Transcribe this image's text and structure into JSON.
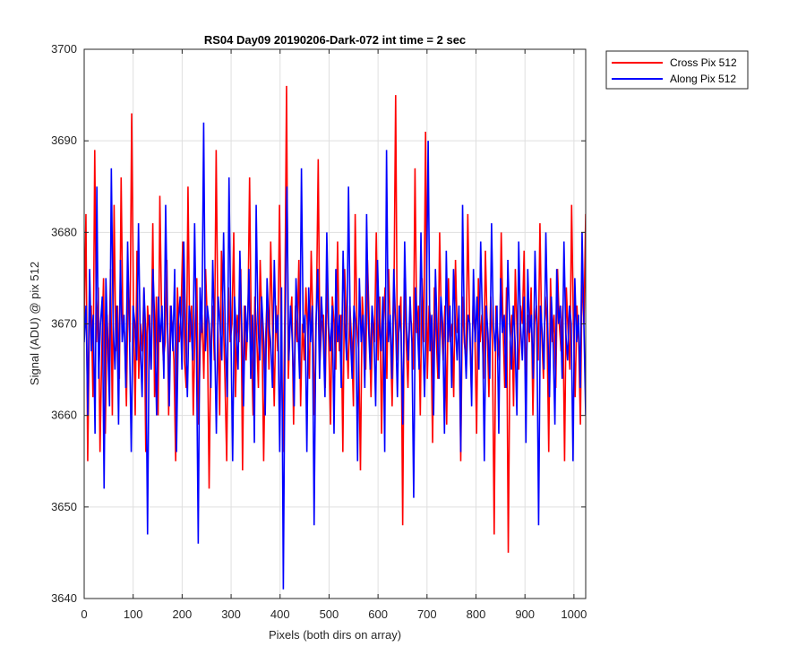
{
  "chart_data": {
    "type": "line",
    "title": "RS04 Day09 20190206-Dark-072 int time = 2 sec",
    "xlabel": "Pixels (both dirs on array)",
    "ylabel": "Signal (ADU) @ pix 512",
    "xlim": [
      0,
      1024
    ],
    "ylim": [
      3640,
      3700
    ],
    "xticks": [
      0,
      100,
      200,
      300,
      400,
      500,
      600,
      700,
      800,
      900,
      1000
    ],
    "yticks": [
      3640,
      3650,
      3660,
      3670,
      3680,
      3690,
      3700
    ],
    "grid": true,
    "legend_position": "outside-top-right",
    "series": [
      {
        "name": "Cross Pix 512",
        "color": "#ff0000",
        "x_step": 1,
        "values": [
          3670,
          3682,
          3655,
          3670,
          3672,
          3662,
          3689,
          3668,
          3674,
          3656,
          3667,
          3675,
          3658,
          3671,
          3665,
          3676,
          3660,
          3683,
          3667,
          3672,
          3664,
          3686,
          3670,
          3669,
          3661,
          3675,
          3668,
          3693,
          3672,
          3660,
          3678,
          3664,
          3670,
          3667,
          3674,
          3656,
          3672,
          3669,
          3665,
          3681,
          3662,
          3673,
          3660,
          3684,
          3671,
          3666,
          3668,
          3677,
          3660,
          3672,
          3670,
          3666,
          3655,
          3674,
          3668,
          3671,
          3679,
          3666,
          3663,
          3685,
          3668,
          3672,
          3660,
          3670,
          3675,
          3659,
          3668,
          3671,
          3664,
          3676,
          3670,
          3652,
          3668,
          3672,
          3666,
          3689,
          3670,
          3660,
          3678,
          3671,
          3664,
          3655,
          3674,
          3668,
          3670,
          3680,
          3662,
          3671,
          3668,
          3676,
          3654,
          3672,
          3666,
          3670,
          3686,
          3668,
          3660,
          3673,
          3669,
          3663,
          3677,
          3670,
          3655,
          3668,
          3673,
          3665,
          3679,
          3670,
          3661,
          3672,
          3667,
          3683,
          3668,
          3656,
          3671,
          3696,
          3664,
          3670,
          3673,
          3659,
          3672,
          3668,
          3677,
          3661,
          3670,
          3666,
          3674,
          3669,
          3664,
          3678,
          3670,
          3660,
          3672,
          3688,
          3666,
          3670,
          3671,
          3663,
          3675,
          3668,
          3659,
          3673,
          3670,
          3665,
          3679,
          3667,
          3671,
          3656,
          3676,
          3670,
          3664,
          3672,
          3668,
          3661,
          3682,
          3670,
          3667,
          3654,
          3673,
          3669,
          3665,
          3677,
          3670,
          3662,
          3671,
          3668,
          3680,
          3666,
          3673,
          3658,
          3670,
          3674,
          3664,
          3676,
          3669,
          3661,
          3672,
          3695,
          3666,
          3670,
          3673,
          3648,
          3675,
          3668,
          3663,
          3671,
          3670,
          3665,
          3687,
          3669,
          3672,
          3660,
          3675,
          3668,
          3691,
          3664,
          3672,
          3670,
          3657,
          3674,
          3669,
          3664,
          3680,
          3670,
          3666,
          3672,
          3659,
          3675,
          3668,
          3670,
          3662,
          3677,
          3669,
          3671,
          3655,
          3673,
          3668,
          3666,
          3682,
          3670,
          3663,
          3672,
          3669,
          3658,
          3675,
          3668,
          3671,
          3664,
          3678,
          3670,
          3662,
          3673,
          3668,
          3647,
          3672,
          3669,
          3666,
          3680,
          3670,
          3663,
          3674,
          3645,
          3668,
          3671,
          3661,
          3676,
          3669,
          3665,
          3672,
          3670,
          3678,
          3663,
          3671,
          3668,
          3674,
          3660,
          3670,
          3672,
          3666,
          3681,
          3669,
          3664,
          3673,
          3670,
          3656,
          3675,
          3668,
          3671,
          3663,
          3676,
          3670,
          3667,
          3672,
          3655,
          3674,
          3669,
          3665,
          3683,
          3670,
          3662,
          3672,
          3668,
          3659,
          3676,
          3670,
          3682
        ]
      },
      {
        "name": "Along Pix 512",
        "color": "#0000ff",
        "x_step": 1,
        "values": [
          3668,
          3672,
          3660,
          3676,
          3667,
          3671,
          3658,
          3685,
          3664,
          3670,
          3673,
          3652,
          3675,
          3668,
          3661,
          3687,
          3670,
          3665,
          3672,
          3659,
          3677,
          3668,
          3671,
          3663,
          3679,
          3669,
          3656,
          3672,
          3670,
          3666,
          3681,
          3668,
          3662,
          3674,
          3669,
          3647,
          3671,
          3665,
          3676,
          3670,
          3660,
          3673,
          3668,
          3672,
          3664,
          3683,
          3670,
          3661,
          3672,
          3667,
          3676,
          3656,
          3670,
          3673,
          3665,
          3679,
          3669,
          3662,
          3672,
          3670,
          3666,
          3681,
          3668,
          3646,
          3674,
          3669,
          3692,
          3667,
          3672,
          3670,
          3663,
          3677,
          3669,
          3658,
          3673,
          3670,
          3666,
          3680,
          3668,
          3662,
          3686,
          3670,
          3655,
          3673,
          3669,
          3665,
          3678,
          3670,
          3661,
          3672,
          3668,
          3676,
          3664,
          3671,
          3657,
          3683,
          3670,
          3666,
          3673,
          3669,
          3660,
          3675,
          3670,
          3668,
          3663,
          3677,
          3669,
          3671,
          3656,
          3674,
          3641,
          3670,
          3685,
          3666,
          3672,
          3668,
          3661,
          3675,
          3670,
          3664,
          3687,
          3669,
          3671,
          3656,
          3674,
          3668,
          3672,
          3648,
          3670,
          3676,
          3664,
          3673,
          3669,
          3662,
          3680,
          3670,
          3667,
          3672,
          3658,
          3676,
          3668,
          3671,
          3663,
          3678,
          3670,
          3666,
          3685,
          3669,
          3664,
          3672,
          3670,
          3655,
          3675,
          3668,
          3671,
          3663,
          3682,
          3670,
          3665,
          3672,
          3669,
          3661,
          3677,
          3670,
          3667,
          3673,
          3656,
          3689,
          3668,
          3671,
          3664,
          3676,
          3670,
          3662,
          3672,
          3669,
          3659,
          3679,
          3670,
          3666,
          3673,
          3668,
          3651,
          3674,
          3670,
          3665,
          3680,
          3669,
          3662,
          3672,
          3690,
          3667,
          3671,
          3660,
          3676,
          3669,
          3664,
          3673,
          3670,
          3658,
          3678,
          3668,
          3672,
          3663,
          3676,
          3670,
          3666,
          3672,
          3656,
          3683,
          3669,
          3664,
          3671,
          3670,
          3661,
          3676,
          3668,
          3673,
          3665,
          3679,
          3670,
          3655,
          3672,
          3669,
          3664,
          3681,
          3670,
          3667,
          3672,
          3658,
          3675,
          3669,
          3671,
          3663,
          3677,
          3670,
          3665,
          3672,
          3668,
          3660,
          3679,
          3670,
          3666,
          3673,
          3657,
          3676,
          3669,
          3671,
          3664,
          3678,
          3670,
          3648,
          3672,
          3669,
          3665,
          3680,
          3670,
          3662,
          3673,
          3668,
          3659,
          3676,
          3670,
          3672,
          3664,
          3679,
          3669,
          3666,
          3672,
          3670,
          3655,
          3675,
          3668,
          3671,
          3663,
          3680,
          3670,
          3660
        ]
      }
    ]
  }
}
